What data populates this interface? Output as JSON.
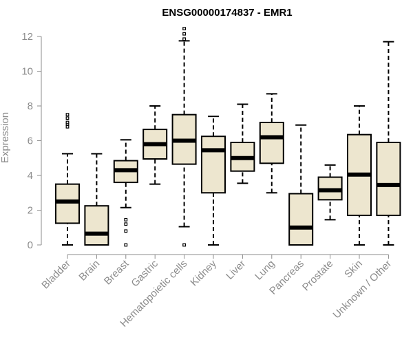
{
  "chart_data": {
    "type": "boxplot",
    "title": "ENSG00000174837 - EMR1",
    "xlabel": "",
    "ylabel": "Expression",
    "ylim": [
      0,
      12
    ],
    "yticks": [
      0,
      2,
      4,
      6,
      8,
      10,
      12
    ],
    "colors": {
      "box_fill": "#ede6cf",
      "outline": "#000000",
      "axis_text": "#8c8c8c"
    },
    "categories": [
      "Bladder",
      "Brain",
      "Breast",
      "Gastric",
      "Hematopoietic cells",
      "Kidney",
      "Liver",
      "Lung",
      "Pancreas",
      "Prostate",
      "Skin",
      "Unknown / Other"
    ],
    "boxes": [
      {
        "label": "Bladder",
        "min": 0.0,
        "q1": 1.25,
        "median": 2.5,
        "q3": 3.5,
        "max": 5.25,
        "outliers": [
          6.8,
          6.95,
          7.05,
          7.3,
          7.5
        ]
      },
      {
        "label": "Brain",
        "min": 0.0,
        "q1": 0.0,
        "median": 0.65,
        "q3": 2.25,
        "max": 5.25,
        "outliers": []
      },
      {
        "label": "Breast",
        "min": 2.15,
        "q1": 3.6,
        "median": 4.3,
        "q3": 4.85,
        "max": 6.05,
        "outliers": [
          1.2,
          1.45,
          0.8,
          0.0
        ]
      },
      {
        "label": "Gastric",
        "min": 3.5,
        "q1": 4.95,
        "median": 5.8,
        "q3": 6.65,
        "max": 8.0,
        "outliers": []
      },
      {
        "label": "Hematopoietic cells",
        "min": 1.05,
        "q1": 4.65,
        "median": 6.0,
        "q3": 7.5,
        "max": 11.75,
        "outliers": [
          11.85,
          12.15,
          12.45,
          0.0
        ]
      },
      {
        "label": "Kidney",
        "min": 0.0,
        "q1": 3.0,
        "median": 5.45,
        "q3": 6.25,
        "max": 7.4,
        "outliers": []
      },
      {
        "label": "Liver",
        "min": 3.55,
        "q1": 4.25,
        "median": 5.0,
        "q3": 5.9,
        "max": 8.1,
        "outliers": []
      },
      {
        "label": "Lung",
        "min": 3.0,
        "q1": 4.7,
        "median": 6.2,
        "q3": 7.05,
        "max": 8.7,
        "outliers": []
      },
      {
        "label": "Pancreas",
        "min": 0.0,
        "q1": 0.0,
        "median": 1.0,
        "q3": 2.95,
        "max": 6.9,
        "outliers": []
      },
      {
        "label": "Prostate",
        "min": 1.45,
        "q1": 2.6,
        "median": 3.15,
        "q3": 3.9,
        "max": 4.6,
        "outliers": []
      },
      {
        "label": "Skin",
        "min": 0.0,
        "q1": 1.7,
        "median": 4.05,
        "q3": 6.35,
        "max": 8.0,
        "outliers": []
      },
      {
        "label": "Unknown / Other",
        "min": 0.0,
        "q1": 1.7,
        "median": 3.45,
        "q3": 5.9,
        "max": 11.7,
        "outliers": []
      }
    ]
  }
}
